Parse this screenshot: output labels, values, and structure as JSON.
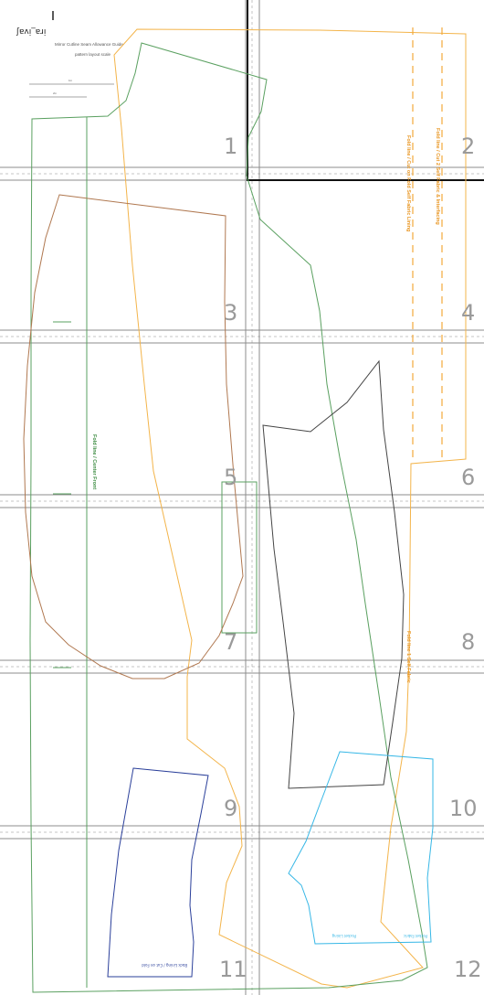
{
  "pattern": {
    "brand_mark": "ʃɐʌᴉ‾ɐɹᴉ",
    "header_lines": [
      "Mirror Cutline Seam Allowance Guide",
      "pattern layout  scale"
    ],
    "scale_labels": [
      "1in",
      "2in"
    ],
    "page_numbers": [
      "1",
      "2",
      "3",
      "4",
      "5",
      "6",
      "7",
      "8",
      "9",
      "10",
      "11",
      "12"
    ],
    "piece_labels": {
      "green_fold": "Fold line / Center Front",
      "orange_strip_a": "Fold line / Cut 2 Self Fabric & Interfacing",
      "orange_strip_b": "Fold line / Cut on Fold Self Fabric Lining",
      "orange_center": "Fold line 1 Self Fabric",
      "blue_piece": "Back Lining / Cut on Fold",
      "cyan_piece_a": "Pocket Lining",
      "cyan_piece_b": "Pocket Fabric"
    },
    "colors": {
      "green": "#5aa060",
      "orange": "#f3b44a",
      "orange_dash": "#f2a93b",
      "brown": "#b07850",
      "black_outline": "#333333",
      "navy": "#2a3f9a",
      "cyan": "#36b7e6",
      "grid": "#8c8c8c",
      "page_number": "#9a9a9a"
    }
  }
}
